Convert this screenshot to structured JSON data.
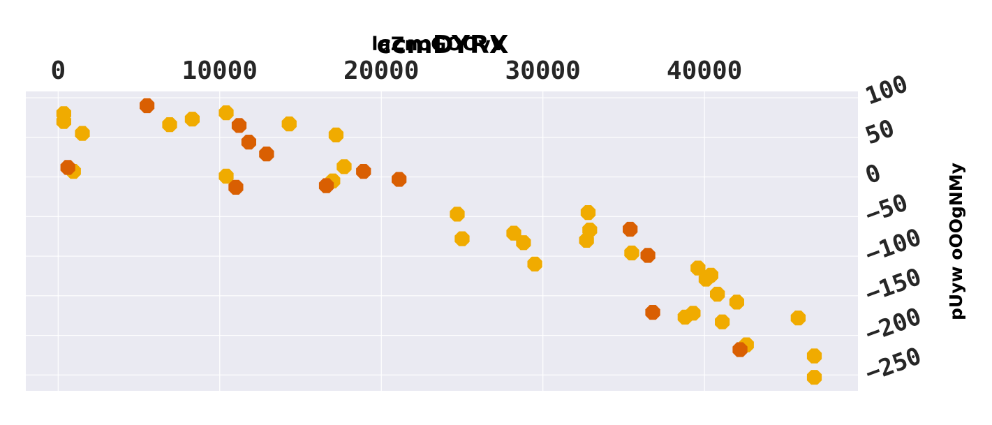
{
  "chart_data": {
    "type": "scatter",
    "title": "ccmDYRX",
    "subtitle": "laZnoGOOvV",
    "xlabel": "",
    "ylabel": "pUyw oOOgNMy",
    "xlim": [
      -2000,
      49500
    ],
    "ylim": [
      -270,
      108
    ],
    "x_ticks": [
      0,
      10000,
      20000,
      30000,
      40000
    ],
    "y_ticks": [
      100,
      50,
      0,
      -50,
      -100,
      -150,
      -200,
      -250
    ],
    "grid": true,
    "x_axis_position": "top",
    "y_axis_position": "right",
    "colors": {
      "background": "#eaeaf2",
      "grid": "#ffffff",
      "series_a": "#f0ab00",
      "series_b": "#d95f02"
    },
    "series": [
      {
        "color": "#f0ab00",
        "points": [
          {
            "x": 350,
            "y": 80
          },
          {
            "x": 350,
            "y": 70
          },
          {
            "x": 1500,
            "y": 55
          },
          {
            "x": 950,
            "y": 7
          },
          {
            "x": 6900,
            "y": 66
          },
          {
            "x": 8300,
            "y": 73
          },
          {
            "x": 10400,
            "y": 81
          },
          {
            "x": 10400,
            "y": 1
          },
          {
            "x": 14300,
            "y": 67
          },
          {
            "x": 17200,
            "y": 53
          },
          {
            "x": 17700,
            "y": 13
          },
          {
            "x": 17000,
            "y": -5
          },
          {
            "x": 24700,
            "y": -47
          },
          {
            "x": 25000,
            "y": -78
          },
          {
            "x": 28200,
            "y": -71
          },
          {
            "x": 28800,
            "y": -83
          },
          {
            "x": 29500,
            "y": -110
          },
          {
            "x": 32800,
            "y": -45
          },
          {
            "x": 32900,
            "y": -67
          },
          {
            "x": 32700,
            "y": -80
          },
          {
            "x": 35500,
            "y": -96
          },
          {
            "x": 39600,
            "y": -115
          },
          {
            "x": 40400,
            "y": -124
          },
          {
            "x": 40100,
            "y": -129
          },
          {
            "x": 40800,
            "y": -148
          },
          {
            "x": 42000,
            "y": -158
          },
          {
            "x": 38800,
            "y": -177
          },
          {
            "x": 39300,
            "y": -172
          },
          {
            "x": 41100,
            "y": -183
          },
          {
            "x": 42600,
            "y": -212
          },
          {
            "x": 45800,
            "y": -178
          },
          {
            "x": 46800,
            "y": -226
          },
          {
            "x": 46800,
            "y": -253
          }
        ]
      },
      {
        "color": "#d95f02",
        "points": [
          {
            "x": 600,
            "y": 12
          },
          {
            "x": 5500,
            "y": 90
          },
          {
            "x": 11200,
            "y": 65
          },
          {
            "x": 11800,
            "y": 44
          },
          {
            "x": 12900,
            "y": 29
          },
          {
            "x": 11000,
            "y": -13
          },
          {
            "x": 16600,
            "y": -11
          },
          {
            "x": 18900,
            "y": 7
          },
          {
            "x": 21100,
            "y": -3
          },
          {
            "x": 35400,
            "y": -66
          },
          {
            "x": 36500,
            "y": -99
          },
          {
            "x": 36800,
            "y": -171
          },
          {
            "x": 42200,
            "y": -218
          }
        ]
      }
    ]
  }
}
